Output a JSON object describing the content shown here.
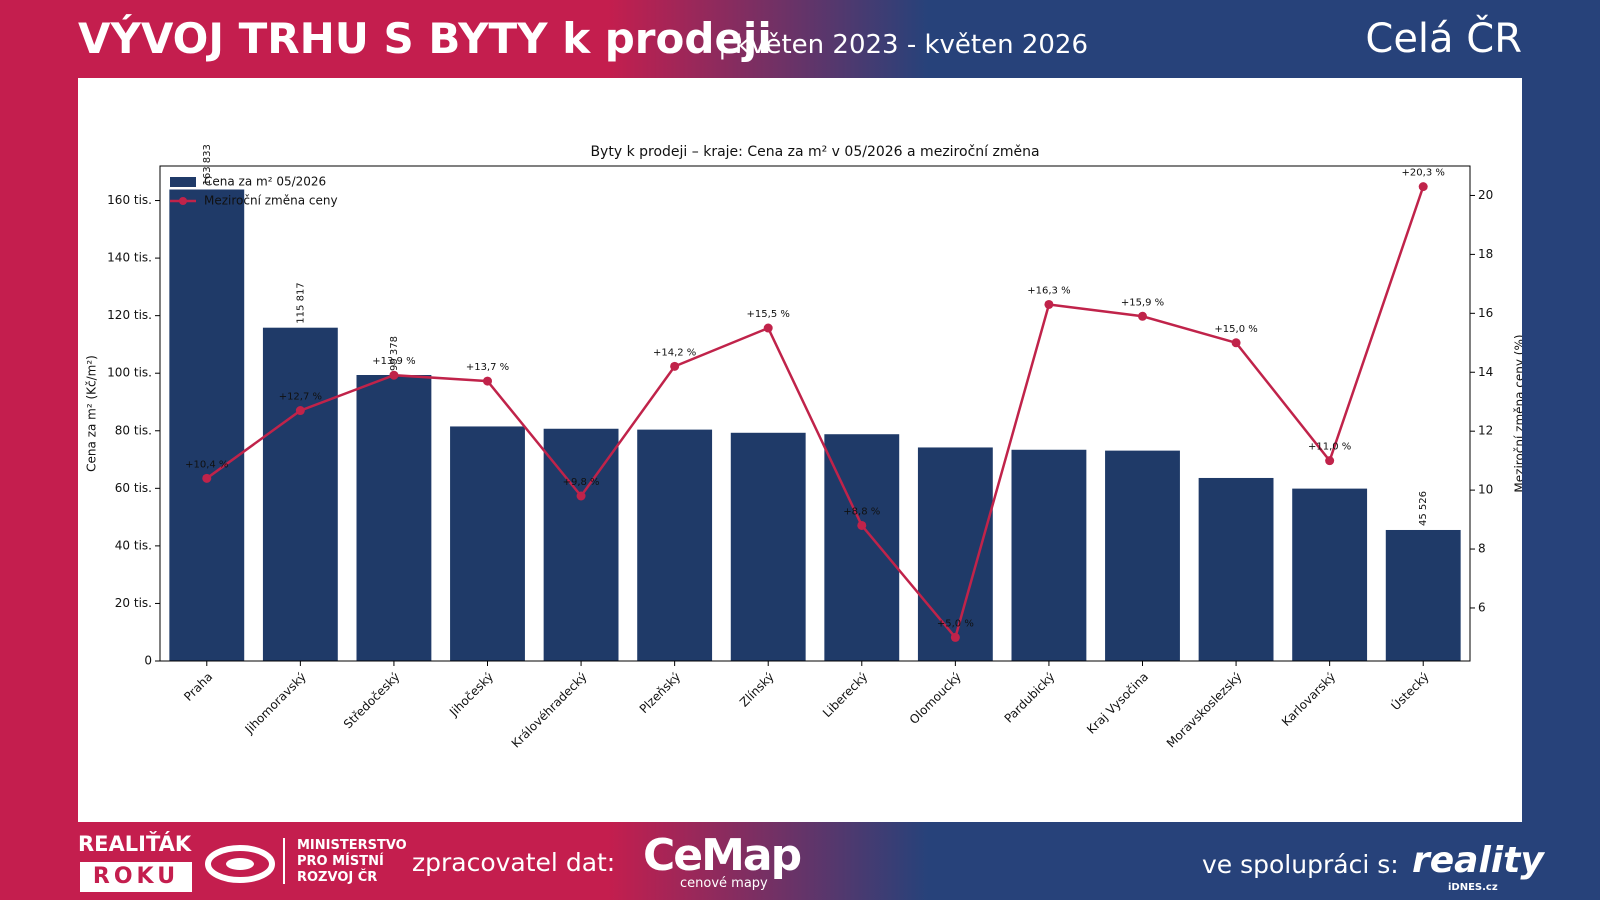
{
  "header": {
    "title": "VÝVOJ TRHU S BYTY k prodeji",
    "subtitle": "| květen 2023 - květen 2026",
    "region": "Celá ČR"
  },
  "footer": {
    "award_line1": "REALIŤÁK",
    "award_line2": "ROKU",
    "ministry": [
      "MINISTERSTVO",
      "PRO MÍSTNÍ",
      "ROZVOJ ČR"
    ],
    "processor_label": "zpracovatel dat:",
    "processor_logo": "CeMap",
    "processor_tagline": "cenové mapy",
    "partner_label": "ve spolupráci s:",
    "partner_logo": "reality",
    "partner_tagline": "iDNES.cz"
  },
  "chart_data": {
    "type": "bar-line",
    "title": "Byty k prodeji – kraje: Cena za m² v 05/2026 a meziroční změna",
    "y_label": "Cena za m² (Kč/m²)",
    "y2_label": "Meziroční změna ceny (%)",
    "categories": [
      "Praha",
      "Jihomoravský",
      "Středočeský",
      "Jihočeský",
      "Královéhradecký",
      "Plzeňský",
      "Zlínský",
      "Liberecký",
      "Olomoucký",
      "Pardubický",
      "Kraj Vysočina",
      "Moravskoslezský",
      "Karlovarský",
      "Ústecký"
    ],
    "series": [
      {
        "name": "Cena za m² 05/2026",
        "type": "bar",
        "color": "#1f3a68",
        "values": [
          163833,
          115817,
          99378,
          81500,
          80700,
          80400,
          79300,
          78800,
          74200,
          73400,
          73100,
          63600,
          59900,
          45526
        ],
        "value_labels": [
          "163 833",
          "115 817",
          "99 378",
          null,
          null,
          null,
          null,
          null,
          null,
          null,
          null,
          null,
          null,
          "45 526"
        ]
      },
      {
        "name": "Meziroční změna ceny",
        "type": "line",
        "axis": "y2",
        "color": "#c0234a",
        "values": [
          10.4,
          12.7,
          13.9,
          13.7,
          9.8,
          14.2,
          15.5,
          8.8,
          5.0,
          16.3,
          15.9,
          15.0,
          11.0,
          20.3
        ],
        "value_labels": [
          "+10,4 %",
          "+12,7 %",
          "+13,9 %",
          "+13,7 %",
          "+9,8 %",
          "+14,2 %",
          "+15,5 %",
          "+8,8 %",
          "+5,0 %",
          "+16,3 %",
          "+15,9 %",
          "+15,0 %",
          "+11,0 %",
          "+20,3 %"
        ]
      }
    ],
    "ylim": [
      0,
      172000
    ],
    "yticks": [
      0,
      {
        "value": 20000,
        "label": "20 tis."
      },
      {
        "value": 40000,
        "label": "40 tis."
      },
      {
        "value": 60000,
        "label": "60 tis."
      },
      {
        "value": 80000,
        "label": "80 tis."
      },
      {
        "value": 100000,
        "label": "100 tis."
      },
      {
        "value": 120000,
        "label": "120 tis."
      },
      {
        "value": 140000,
        "label": "140 tis."
      },
      {
        "value": 160000,
        "label": "160 tis."
      }
    ],
    "y2lim": [
      4.2,
      21.0
    ],
    "y2ticks": [
      6,
      8,
      10,
      12,
      14,
      16,
      18,
      20
    ],
    "legend": "upper left"
  }
}
